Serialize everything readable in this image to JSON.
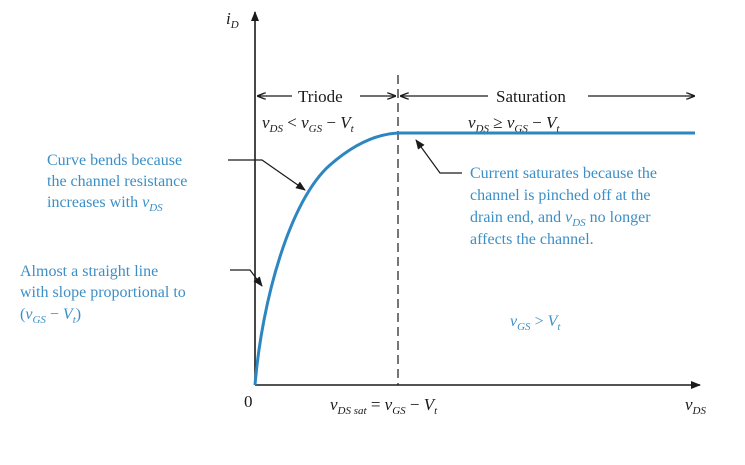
{
  "colors": {
    "curve": "#2e86c1",
    "annotation_text": "#3b8fc6",
    "ink": "#1a1a1a"
  },
  "axes": {
    "y_label": "i",
    "y_label_sub": "D",
    "x_label": "v",
    "x_label_sub": "DS",
    "origin": "0"
  },
  "regions": {
    "triode": {
      "name": "Triode",
      "cond_v": "v",
      "cond_v_sub": "DS",
      "cond_op": " < ",
      "cond_v2": "v",
      "cond_v2_sub": "GS",
      "cond_rest": " − ",
      "cond_vt": "V",
      "cond_vt_sub": "t"
    },
    "saturation": {
      "name": "Saturation",
      "cond_v": "v",
      "cond_v_sub": "DS",
      "cond_op": " ≥ ",
      "cond_v2": "v",
      "cond_v2_sub": "GS",
      "cond_rest": " − ",
      "cond_vt": "V",
      "cond_vt_sub": "t"
    }
  },
  "vdssat_label": {
    "v": "v",
    "sub": "DS sat",
    "eq": " = ",
    "v2": "v",
    "sub2": "GS",
    "minus": " − ",
    "vt": "V",
    "vt_sub": "t"
  },
  "annotations": {
    "curve_bends": [
      "Curve bends because",
      "the channel resistance",
      "increases with "
    ],
    "curve_bends_var": "v",
    "curve_bends_var_sub": "DS",
    "straight_line": [
      "Almost a straight line",
      "with slope proportional to",
      "("
    ],
    "straight_var": "v",
    "straight_var_sub": "GS",
    "straight_minus": " − ",
    "straight_vt": "V",
    "straight_vt_sub": "t",
    "straight_close": ")",
    "saturates": [
      "Current saturates because the",
      "channel is pinched off at the",
      "drain end, and ",
      "affects the channel."
    ],
    "saturates_var": "v",
    "saturates_var_sub": "DS",
    "saturates_tail": " no longer",
    "vgs_cond": {
      "v": "v",
      "sub": "GS",
      "op": " > ",
      "vt": "V",
      "vt_sub": "t"
    }
  }
}
